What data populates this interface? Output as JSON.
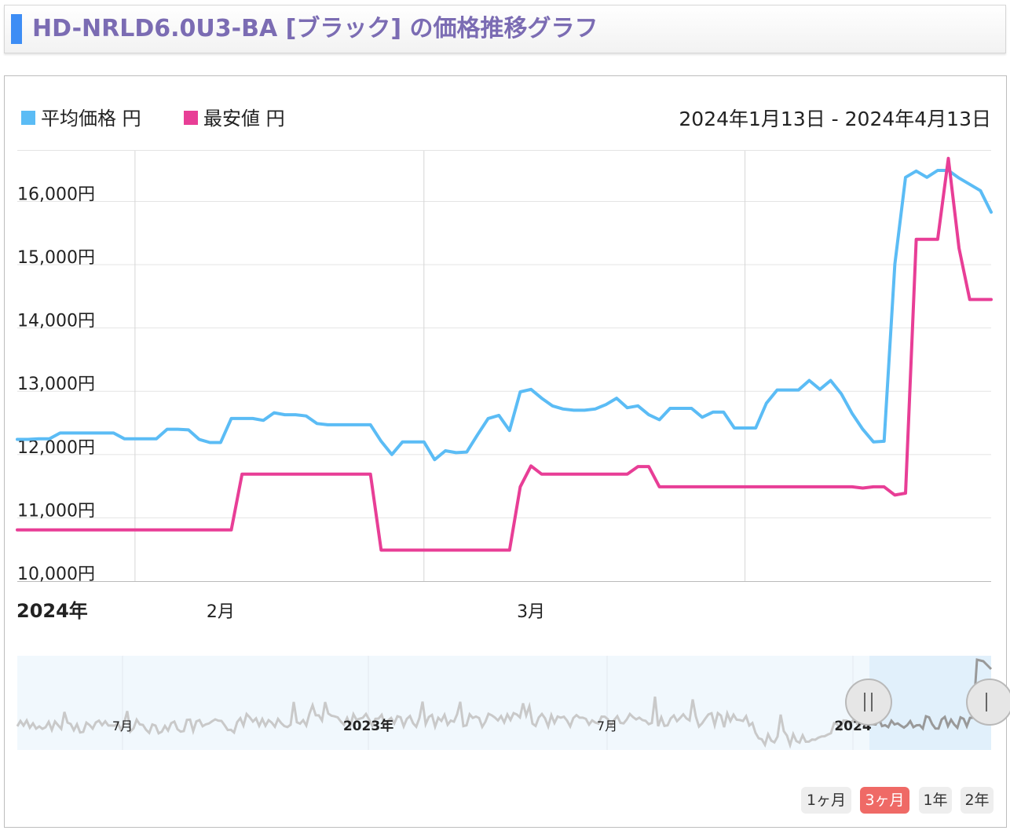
{
  "header": {
    "title": "HD-NRLD6.0U3-BA [ブラック] の価格推移グラフ"
  },
  "legend": [
    {
      "label": "平均価格 円",
      "color": "#5bbcf5"
    },
    {
      "label": "最安値 円",
      "color": "#e83e96"
    }
  ],
  "date_range": "2024年1月13日 - 2024年4月13日",
  "range_buttons": [
    {
      "label": "1ヶ月",
      "active": false
    },
    {
      "label": "3ヶ月",
      "active": true
    },
    {
      "label": "1年",
      "active": false
    },
    {
      "label": "2年",
      "active": false
    }
  ],
  "navigator": {
    "labels": [
      "7月",
      "2023年",
      "7月",
      "2024"
    ],
    "handle_icon": "drag-handle-icon"
  },
  "chart_data": {
    "type": "line",
    "x_start": "2024-01-13",
    "x_end": "2024-04-13",
    "ylim": [
      10000,
      16800
    ],
    "y_ticks": [
      10000,
      11000,
      12000,
      13000,
      14000,
      15000,
      16000
    ],
    "y_tick_labels": [
      "10,000円",
      "11,000円",
      "12,000円",
      "13,000円",
      "14,000円",
      "15,000円",
      "16,000円"
    ],
    "x_tick_labels": [
      {
        "date": "2024-01-13",
        "label": "2024年",
        "bold": true
      },
      {
        "date": "2024-02-01",
        "label": "2月",
        "bold": false
      },
      {
        "date": "2024-03-01",
        "label": "3月",
        "bold": false
      }
    ],
    "x_gridlines": [
      "2024-01-24",
      "2024-02-20",
      "2024-03-21"
    ],
    "grid": true,
    "series": [
      {
        "name": "平均価格 円",
        "color": "#5bbcf5",
        "points": [
          [
            "2024-01-13",
            12240
          ],
          [
            "2024-01-14",
            12240
          ],
          [
            "2024-01-15",
            12250
          ],
          [
            "2024-01-16",
            12250
          ],
          [
            "2024-01-17",
            12340
          ],
          [
            "2024-01-18",
            12340
          ],
          [
            "2024-01-19",
            12340
          ],
          [
            "2024-01-20",
            12340
          ],
          [
            "2024-01-21",
            12340
          ],
          [
            "2024-01-22",
            12340
          ],
          [
            "2024-01-23",
            12250
          ],
          [
            "2024-01-24",
            12250
          ],
          [
            "2024-01-25",
            12250
          ],
          [
            "2024-01-26",
            12250
          ],
          [
            "2024-01-27",
            12400
          ],
          [
            "2024-01-28",
            12400
          ],
          [
            "2024-01-29",
            12390
          ],
          [
            "2024-01-30",
            12240
          ],
          [
            "2024-01-31",
            12190
          ],
          [
            "2024-02-01",
            12190
          ],
          [
            "2024-02-02",
            12570
          ],
          [
            "2024-02-03",
            12570
          ],
          [
            "2024-02-04",
            12570
          ],
          [
            "2024-02-05",
            12540
          ],
          [
            "2024-02-06",
            12660
          ],
          [
            "2024-02-07",
            12630
          ],
          [
            "2024-02-08",
            12630
          ],
          [
            "2024-02-09",
            12610
          ],
          [
            "2024-02-10",
            12490
          ],
          [
            "2024-02-11",
            12470
          ],
          [
            "2024-02-12",
            12470
          ],
          [
            "2024-02-13",
            12470
          ],
          [
            "2024-02-14",
            12470
          ],
          [
            "2024-02-15",
            12470
          ],
          [
            "2024-02-16",
            12210
          ],
          [
            "2024-02-17",
            12000
          ],
          [
            "2024-02-18",
            12200
          ],
          [
            "2024-02-19",
            12200
          ],
          [
            "2024-02-20",
            12200
          ],
          [
            "2024-02-21",
            11920
          ],
          [
            "2024-02-22",
            12060
          ],
          [
            "2024-02-23",
            12030
          ],
          [
            "2024-02-24",
            12040
          ],
          [
            "2024-02-25",
            12310
          ],
          [
            "2024-02-26",
            12570
          ],
          [
            "2024-02-27",
            12620
          ],
          [
            "2024-02-28",
            12380
          ],
          [
            "2024-02-29",
            12990
          ],
          [
            "2024-03-01",
            13030
          ],
          [
            "2024-03-02",
            12890
          ],
          [
            "2024-03-03",
            12770
          ],
          [
            "2024-03-04",
            12720
          ],
          [
            "2024-03-05",
            12700
          ],
          [
            "2024-03-06",
            12700
          ],
          [
            "2024-03-07",
            12720
          ],
          [
            "2024-03-08",
            12790
          ],
          [
            "2024-03-09",
            12890
          ],
          [
            "2024-03-10",
            12740
          ],
          [
            "2024-03-11",
            12770
          ],
          [
            "2024-03-12",
            12630
          ],
          [
            "2024-03-13",
            12550
          ],
          [
            "2024-03-14",
            12730
          ],
          [
            "2024-03-15",
            12730
          ],
          [
            "2024-03-16",
            12730
          ],
          [
            "2024-03-17",
            12590
          ],
          [
            "2024-03-18",
            12670
          ],
          [
            "2024-03-19",
            12670
          ],
          [
            "2024-03-20",
            12420
          ],
          [
            "2024-03-21",
            12420
          ],
          [
            "2024-03-22",
            12420
          ],
          [
            "2024-03-23",
            12810
          ],
          [
            "2024-03-24",
            13020
          ],
          [
            "2024-03-25",
            13020
          ],
          [
            "2024-03-26",
            13020
          ],
          [
            "2024-03-27",
            13170
          ],
          [
            "2024-03-28",
            13030
          ],
          [
            "2024-03-29",
            13170
          ],
          [
            "2024-03-30",
            12960
          ],
          [
            "2024-03-31",
            12650
          ],
          [
            "2024-04-01",
            12400
          ],
          [
            "2024-04-02",
            12200
          ],
          [
            "2024-04-03",
            12210
          ],
          [
            "2024-04-04",
            15010
          ],
          [
            "2024-04-05",
            16380
          ],
          [
            "2024-04-06",
            16480
          ],
          [
            "2024-04-07",
            16380
          ],
          [
            "2024-04-08",
            16490
          ],
          [
            "2024-04-09",
            16490
          ],
          [
            "2024-04-10",
            16370
          ],
          [
            "2024-04-11",
            16270
          ],
          [
            "2024-04-12",
            16170
          ],
          [
            "2024-04-13",
            15830
          ]
        ]
      },
      {
        "name": "最安値 円",
        "color": "#e83e96",
        "points": [
          [
            "2024-01-13",
            10810
          ],
          [
            "2024-02-02",
            10810
          ],
          [
            "2024-02-03",
            11690
          ],
          [
            "2024-02-14",
            11690
          ],
          [
            "2024-02-15",
            11690
          ],
          [
            "2024-02-16",
            10490
          ],
          [
            "2024-02-28",
            10490
          ],
          [
            "2024-02-29",
            11490
          ],
          [
            "2024-03-01",
            11820
          ],
          [
            "2024-03-02",
            11690
          ],
          [
            "2024-03-09",
            11690
          ],
          [
            "2024-03-10",
            11690
          ],
          [
            "2024-03-11",
            11810
          ],
          [
            "2024-03-12",
            11810
          ],
          [
            "2024-03-13",
            11490
          ],
          [
            "2024-03-31",
            11490
          ],
          [
            "2024-04-01",
            11470
          ],
          [
            "2024-04-02",
            11490
          ],
          [
            "2024-04-03",
            11490
          ],
          [
            "2024-04-04",
            11360
          ],
          [
            "2024-04-05",
            11390
          ],
          [
            "2024-04-06",
            15400
          ],
          [
            "2024-04-08",
            15400
          ],
          [
            "2024-04-09",
            16680
          ],
          [
            "2024-04-10",
            15260
          ],
          [
            "2024-04-11",
            14450
          ],
          [
            "2024-04-13",
            14450
          ]
        ]
      }
    ]
  }
}
